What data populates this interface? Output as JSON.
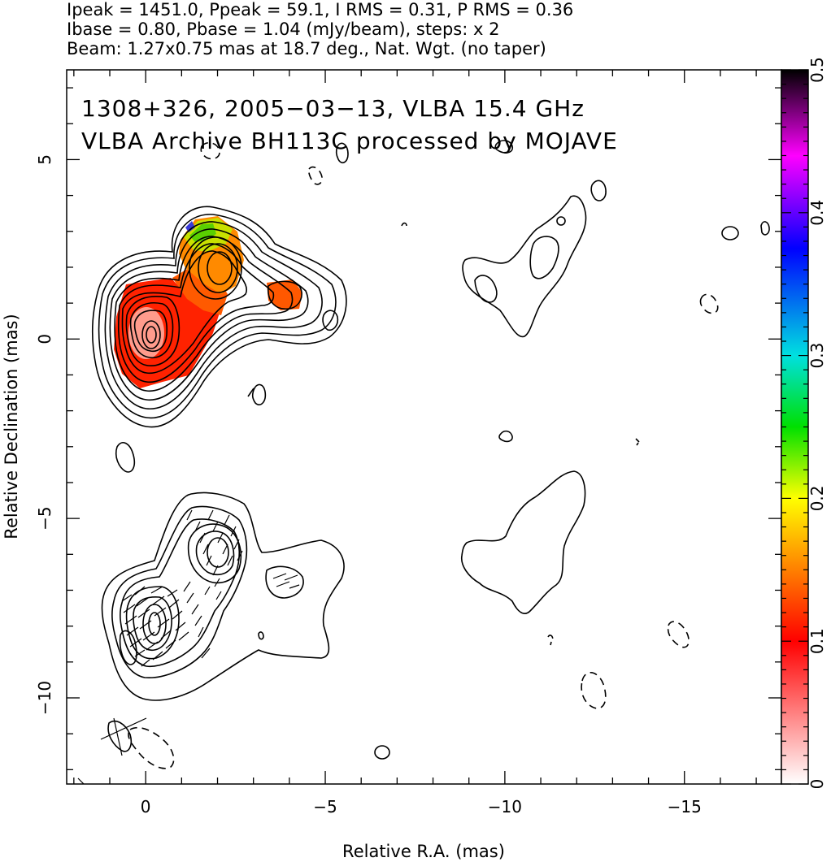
{
  "header": {
    "line1": "Ipeak = 1451.0, Ppeak = 59.1, I RMS = 0.31, P RMS = 0.36",
    "line2": "Ibase = 0.80, Pbase = 1.04 (mJy/beam), steps: x 2",
    "line3": "Beam: 1.27x0.75 mas at 18.7 deg., Nat. Wgt. (no taper)"
  },
  "chart_data": {
    "type": "heatmap",
    "annotations": [
      "1308+326, 2005−03−13, VLBA 15.4 GHz",
      "VLBA Archive BH113C processed by MOJAVE"
    ],
    "xlabel": "Relative R.A. (mas)",
    "ylabel": "Relative Declination (mas)",
    "xlim": [
      2.2,
      -17.7
    ],
    "ylim": [
      -12.4,
      7.5
    ],
    "x_ticks": [
      0,
      -5,
      -10,
      -15
    ],
    "x_tick_labels": [
      "0",
      "−5",
      "−10",
      "−15"
    ],
    "y_ticks": [
      5,
      0,
      -5,
      -10
    ],
    "y_tick_labels": [
      "5",
      "0",
      "−5",
      "−10"
    ],
    "colorbar": {
      "range": [
        0,
        0.5
      ],
      "ticks": [
        0,
        0.1,
        0.2,
        0.3,
        0.4,
        0.5
      ],
      "tick_labels": [
        "0",
        "0.1",
        "0.2",
        "0.3",
        "0.4",
        "0.5"
      ],
      "stops": [
        "#ffffff",
        "#ff0000",
        "#ff8000",
        "#ffff00",
        "#00e000",
        "#00e0e0",
        "#0000ff",
        "#ff00ff",
        "#000000"
      ]
    },
    "fractional_polarization_patches": [
      {
        "x": 0.1,
        "y": 0.4,
        "value": 0.06
      },
      {
        "x": -0.7,
        "y": 0.9,
        "value": 0.1
      },
      {
        "x": -1.8,
        "y": 1.4,
        "value": 0.11
      },
      {
        "x": -1.6,
        "y": 2.5,
        "value": 0.18
      },
      {
        "x": -2.0,
        "y": 2.2,
        "value": 0.15
      },
      {
        "x": -1.3,
        "y": 3.0,
        "value": 0.22
      },
      {
        "x": -3.8,
        "y": 1.3,
        "value": 0.11
      }
    ],
    "stokes_i_components": [
      {
        "x": 0.0,
        "y": 0.3,
        "levels": 10
      },
      {
        "x": -2.0,
        "y": 2.1,
        "levels": 6
      },
      {
        "x": -3.8,
        "y": 1.3,
        "levels": 2
      }
    ],
    "polarized_components": [
      {
        "x": 0.0,
        "y": -7.6,
        "levels": 5
      },
      {
        "x": -2.1,
        "y": -5.9,
        "levels": 4
      },
      {
        "x": -3.8,
        "y": -6.9,
        "levels": 1
      }
    ]
  }
}
